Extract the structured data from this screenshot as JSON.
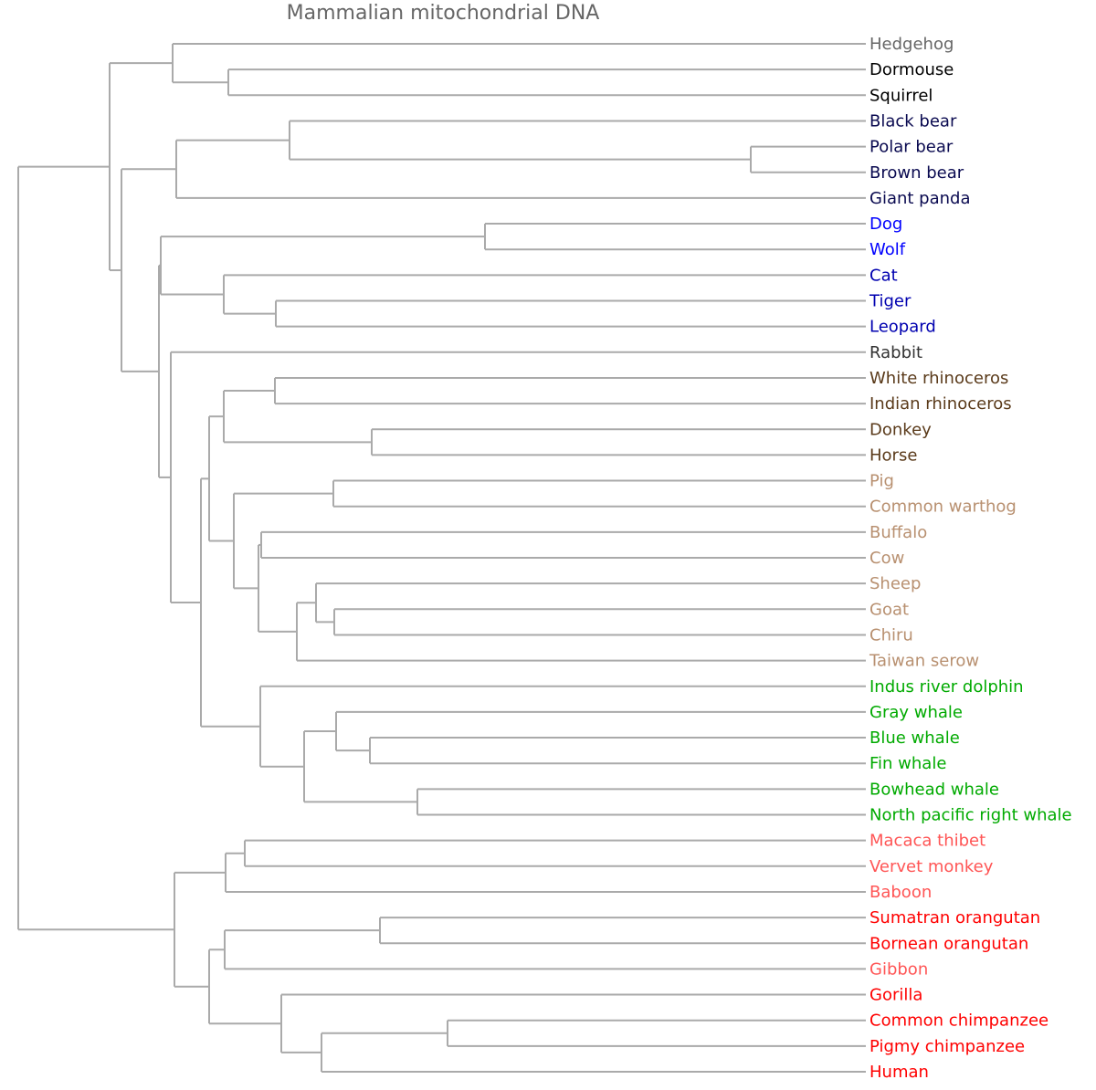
{
  "title": "Mammalian mitochondrial DNA",
  "line_color": "#aaaaaa",
  "leaves": [
    {
      "name": "Hedgehog",
      "color": "#666666"
    },
    {
      "name": "Dormouse",
      "color": "#000000"
    },
    {
      "name": "Squirrel",
      "color": "#000000"
    },
    {
      "name": "Black bear",
      "color": "#0a0a50"
    },
    {
      "name": "Polar bear",
      "color": "#0a0a50"
    },
    {
      "name": "Brown bear",
      "color": "#0a0a50"
    },
    {
      "name": "Giant panda",
      "color": "#0a0a50"
    },
    {
      "name": "Dog",
      "color": "#0000ff"
    },
    {
      "name": "Wolf",
      "color": "#0000ff"
    },
    {
      "name": "Cat",
      "color": "#0000b0"
    },
    {
      "name": "Tiger",
      "color": "#0000b0"
    },
    {
      "name": "Leopard",
      "color": "#0000b0"
    },
    {
      "name": "Rabbit",
      "color": "#333333"
    },
    {
      "name": "White rhinoceros",
      "color": "#5a3a1a"
    },
    {
      "name": "Indian rhinoceros",
      "color": "#5a3a1a"
    },
    {
      "name": "Donkey",
      "color": "#5a3a1a"
    },
    {
      "name": "Horse",
      "color": "#5a3a1a"
    },
    {
      "name": "Pig",
      "color": "#b89070"
    },
    {
      "name": "Common warthog",
      "color": "#b89070"
    },
    {
      "name": "Buffalo",
      "color": "#b89070"
    },
    {
      "name": "Cow",
      "color": "#b89070"
    },
    {
      "name": "Sheep",
      "color": "#b89070"
    },
    {
      "name": "Goat",
      "color": "#b89070"
    },
    {
      "name": "Chiru",
      "color": "#b89070"
    },
    {
      "name": "Taiwan serow",
      "color": "#b89070"
    },
    {
      "name": "Indus river dolphin",
      "color": "#00aa00"
    },
    {
      "name": "Gray whale",
      "color": "#00aa00"
    },
    {
      "name": "Blue whale",
      "color": "#00aa00"
    },
    {
      "name": "Fin whale",
      "color": "#00aa00"
    },
    {
      "name": "Bowhead whale",
      "color": "#00aa00"
    },
    {
      "name": "North pacific right whale",
      "color": "#00aa00"
    },
    {
      "name": "Macaca thibet",
      "color": "#ff5555"
    },
    {
      "name": "Vervet monkey",
      "color": "#ff5555"
    },
    {
      "name": "Baboon",
      "color": "#ff5555"
    },
    {
      "name": "Sumatran orangutan",
      "color": "#ff0000"
    },
    {
      "name": "Bornean orangutan",
      "color": "#ff0000"
    },
    {
      "name": "Gibbon",
      "color": "#ff5555"
    },
    {
      "name": "Gorilla",
      "color": "#ff0000"
    },
    {
      "name": "Common chimpanzee",
      "color": "#ff0000"
    },
    {
      "name": "Pigmy chimpanzee",
      "color": "#ff0000"
    },
    {
      "name": "Human",
      "color": "#ff0000"
    }
  ],
  "tree": [
    [
      [
        0,
        [
          1,
          2
        ]
      ],
      [
        [
          [
            3,
            [
              4,
              5
            ]
          ],
          6
        ],
        [
          [
            [
              7,
              8
            ],
            [
              9,
              [
                10,
                11
              ]
            ]
          ],
          [
            12,
            [
              [
                [
                  [
                    13,
                    14
                  ],
                  [
                    15,
                    16
                  ]
                ],
                [
                  [
                    17,
                    18
                  ],
                  [
                    [
                      19,
                      20
                    ],
                    [
                      [
                        21,
                        [
                          22,
                          23
                        ]
                      ],
                      24
                    ]
                  ]
                ]
              ],
              [
                25,
                [
                  [
                    26,
                    [
                      27,
                      28
                    ]
                  ],
                  [
                    29,
                    30
                  ]
                ]
              ]
            ]
          ]
        ]
      ]
    ],
    [
      [
        [
          31,
          32
        ],
        33
      ],
      [
        [
          [
            34,
            35
          ],
          36
        ],
        [
          37,
          [
            [
              38,
              39
            ],
            40
          ]
        ]
      ]
    ]
  ]
}
